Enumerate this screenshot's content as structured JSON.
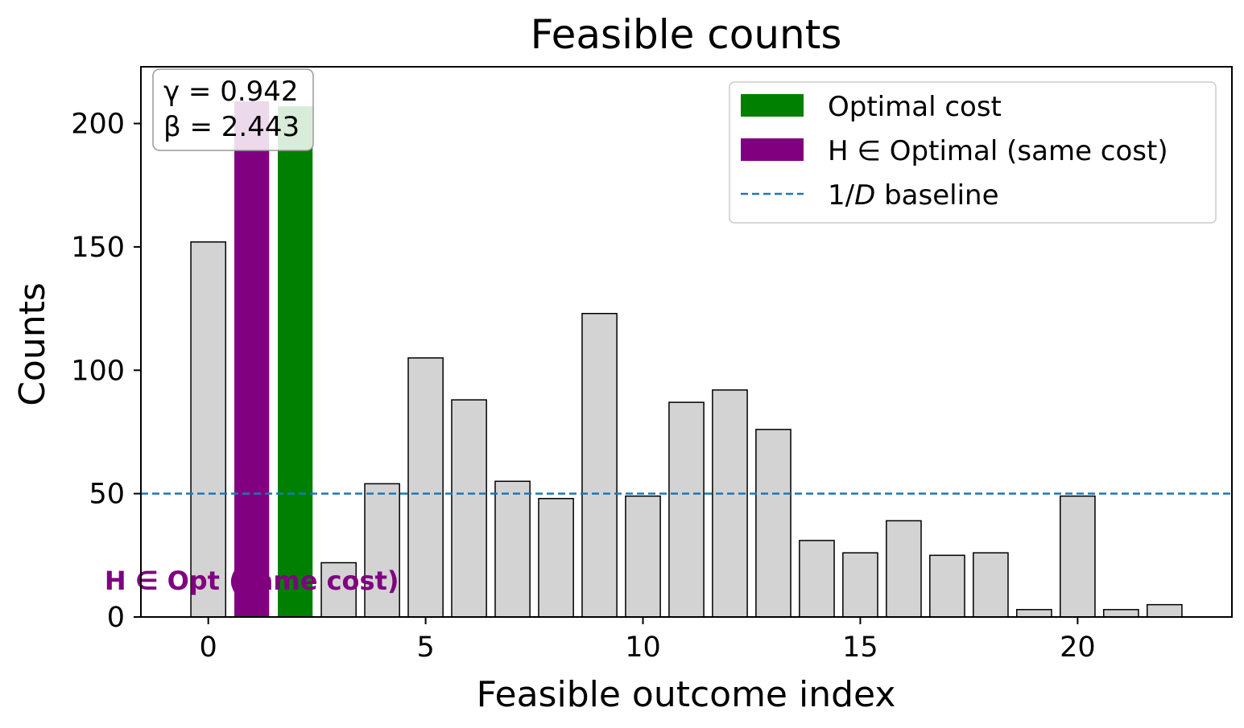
{
  "chart_data": {
    "type": "bar",
    "title": "Feasible counts",
    "xlabel": "Feasible outcome index",
    "ylabel": "Counts",
    "xlim": [
      -1.55,
      23.55
    ],
    "ylim": [
      0,
      223
    ],
    "x": [
      0,
      1,
      2,
      3,
      4,
      5,
      6,
      7,
      8,
      9,
      10,
      11,
      12,
      13,
      14,
      15,
      16,
      17,
      18,
      19,
      20,
      21,
      22
    ],
    "values": [
      152,
      209,
      207,
      22,
      54,
      105,
      88,
      55,
      48,
      123,
      49,
      87,
      92,
      76,
      31,
      26,
      39,
      25,
      26,
      3,
      49,
      3,
      5
    ],
    "bar_roles": [
      "default",
      "h_optimal",
      "optimal",
      "default",
      "default",
      "default",
      "default",
      "default",
      "default",
      "default",
      "default",
      "default",
      "default",
      "default",
      "default",
      "default",
      "default",
      "default",
      "default",
      "default",
      "default",
      "default",
      "default"
    ],
    "x_ticks": [
      0,
      5,
      10,
      15,
      20
    ],
    "y_ticks": [
      0,
      50,
      100,
      150,
      200
    ],
    "baseline": 50,
    "colors": {
      "default": "#d3d3d3",
      "optimal": "#008000",
      "h_optimal": "#800080",
      "baseline": "#1f77b4",
      "edge": "#000000",
      "annotation": "#800080"
    },
    "legend": {
      "placement": "top-right",
      "items": [
        {
          "label": "Optimal cost",
          "kind": "patch",
          "color": "#008000"
        },
        {
          "label": "H ∈ Optimal (same cost)",
          "kind": "patch",
          "color": "#800080"
        },
        {
          "label": "1/D baseline",
          "kind": "dashed-line",
          "color": "#1f77b4"
        }
      ]
    },
    "params_box": {
      "placement": "top-left",
      "lines": [
        "γ = 0.942",
        "β = 2.443"
      ]
    },
    "annotation": {
      "text": "H ∈ Opt (same cost)",
      "x": 1,
      "y": 15
    },
    "grid": false
  }
}
